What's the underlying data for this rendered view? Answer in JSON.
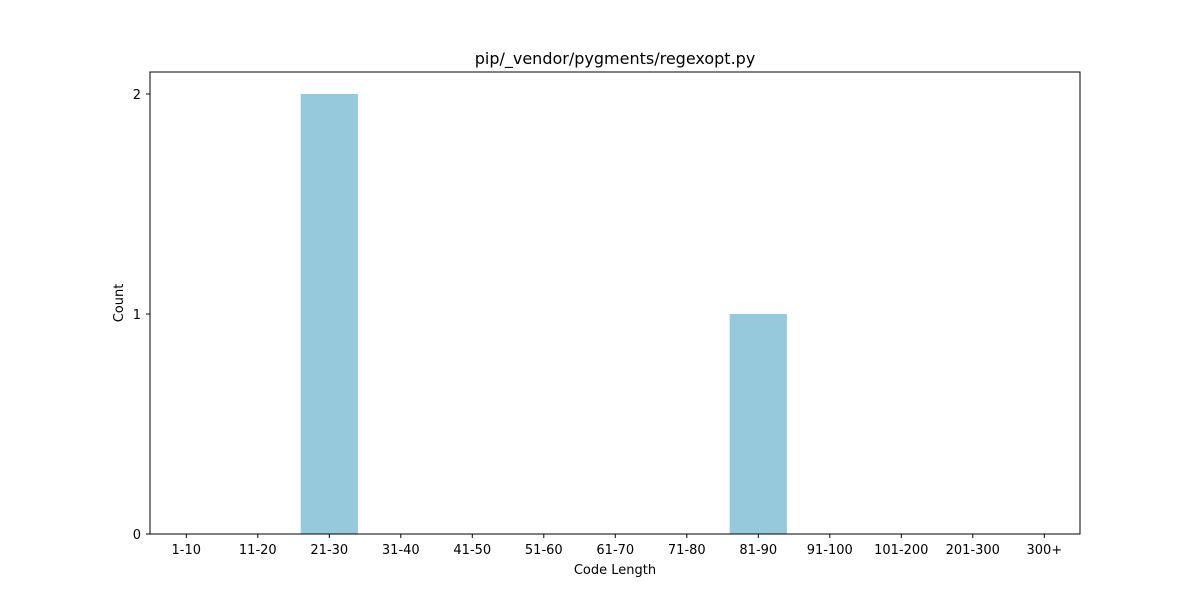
{
  "chart_data": {
    "type": "bar",
    "title": "pip/_vendor/pygments/regexopt.py",
    "xlabel": "Code Length",
    "ylabel": "Count",
    "categories": [
      "1-10",
      "11-20",
      "21-30",
      "31-40",
      "41-50",
      "51-60",
      "61-70",
      "71-80",
      "81-90",
      "91-100",
      "101-200",
      "201-300",
      "300+"
    ],
    "values": [
      0,
      0,
      2,
      0,
      0,
      0,
      0,
      0,
      1,
      0,
      0,
      0,
      0
    ],
    "yticks": [
      "0",
      "1",
      "2"
    ],
    "ylim": [
      0,
      2.1
    ],
    "grid": false,
    "bar_color": "#96c9dc"
  }
}
